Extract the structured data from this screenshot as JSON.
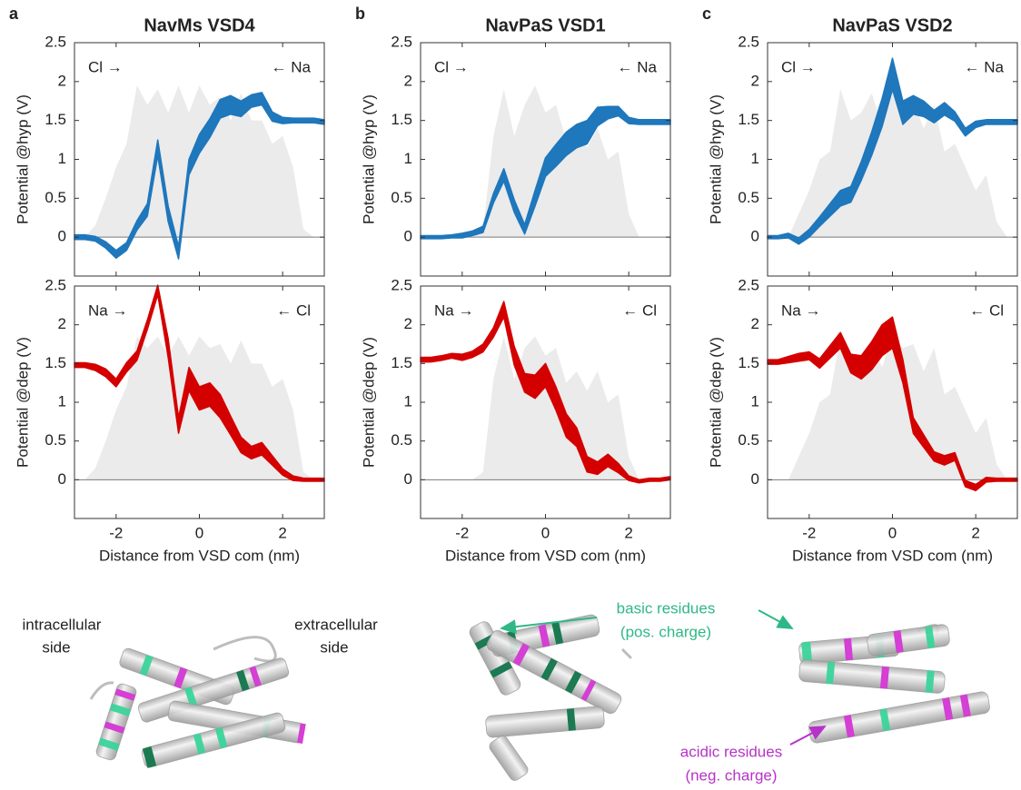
{
  "chart_data": [
    {
      "type": "band",
      "panel_label": "a",
      "title": "NavMs VSD4",
      "ylabel": "Potential @hyp (V)",
      "annotations": [
        "Cl →",
        "← Na"
      ],
      "x": [
        -3,
        -2.75,
        -2.5,
        -2.25,
        -2,
        -1.75,
        -1.5,
        -1.25,
        -1,
        -0.75,
        -0.5,
        -0.25,
        0,
        0.25,
        0.5,
        0.75,
        1,
        1.25,
        1.5,
        1.75,
        2,
        2.25,
        2.5,
        2.75,
        3
      ],
      "xlim": [
        -3,
        3
      ],
      "xticks": [
        -2,
        0,
        2
      ],
      "show_xtick_labels": false,
      "ylim": [
        -0.5,
        2.5
      ],
      "yticks": [
        0,
        0.5,
        1,
        1.5,
        2,
        2.5
      ],
      "zero_line": true,
      "series": [
        {
          "color": "#ebebeb",
          "values": [
            0,
            0,
            0.15,
            0.5,
            0.9,
            1.2,
            1.95,
            1.7,
            1.9,
            1.6,
            1.95,
            1.6,
            1.95,
            1.7,
            1.8,
            1.5,
            1.85,
            1.5,
            1.5,
            1.2,
            1.3,
            0.9,
            0.1,
            0,
            0
          ]
        },
        {
          "color": "#1f77bc",
          "values": [
            0,
            0,
            -0.02,
            -0.1,
            -0.22,
            -0.12,
            0.15,
            0.35,
            1.15,
            0.3,
            -0.2,
            0.9,
            1.2,
            1.4,
            1.65,
            1.7,
            1.65,
            1.75,
            1.78,
            1.55,
            1.5,
            1.5,
            1.5,
            1.5,
            1.48
          ],
          "errors": [
            0.03,
            0.03,
            0.03,
            0.04,
            0.05,
            0.05,
            0.06,
            0.08,
            0.1,
            0.1,
            0.08,
            0.1,
            0.12,
            0.12,
            0.12,
            0.12,
            0.1,
            0.08,
            0.08,
            0.06,
            0.04,
            0.03,
            0.03,
            0.03,
            0.03
          ]
        }
      ]
    },
    {
      "type": "band",
      "panel_label": "b",
      "title": "NavPaS VSD1",
      "ylabel": "Potential @hyp (V)",
      "annotations": [
        "Cl →",
        "← Na"
      ],
      "x": [
        -3,
        -2.75,
        -2.5,
        -2.25,
        -2,
        -1.75,
        -1.5,
        -1.25,
        -1,
        -0.75,
        -0.5,
        -0.25,
        0,
        0.25,
        0.5,
        0.75,
        1,
        1.25,
        1.5,
        1.75,
        2,
        2.25,
        2.5,
        2.75,
        3
      ],
      "xlim": [
        -3,
        3
      ],
      "xticks": [
        -2,
        0,
        2
      ],
      "show_xtick_labels": false,
      "ylim": [
        -0.5,
        2.5
      ],
      "yticks": [
        0,
        0.5,
        1,
        1.5,
        2,
        2.5
      ],
      "zero_line": true,
      "series": [
        {
          "color": "#ebebeb",
          "values": [
            0,
            0,
            0,
            0,
            0,
            0,
            0.1,
            1.3,
            1.9,
            1.3,
            1.7,
            1.95,
            1.6,
            1.7,
            1.25,
            1.4,
            1.15,
            1.4,
            1.0,
            1.1,
            0.3,
            0,
            0,
            0,
            0
          ]
        },
        {
          "color": "#1f77bc",
          "values": [
            0,
            0,
            0,
            0.01,
            0.02,
            0.05,
            0.1,
            0.5,
            0.8,
            0.4,
            0.1,
            0.5,
            0.9,
            1.05,
            1.2,
            1.3,
            1.35,
            1.55,
            1.6,
            1.62,
            1.5,
            1.48,
            1.48,
            1.48,
            1.48
          ],
          "errors": [
            0.02,
            0.02,
            0.02,
            0.02,
            0.03,
            0.03,
            0.04,
            0.06,
            0.08,
            0.08,
            0.06,
            0.1,
            0.12,
            0.14,
            0.15,
            0.15,
            0.15,
            0.12,
            0.08,
            0.06,
            0.04,
            0.03,
            0.03,
            0.03,
            0.03
          ]
        }
      ]
    },
    {
      "type": "band",
      "panel_label": "c",
      "title": "NavPaS VSD2",
      "ylabel": "Potential @hyp (V)",
      "annotations": [
        "Cl →",
        "← Na"
      ],
      "x": [
        -3,
        -2.75,
        -2.5,
        -2.25,
        -2,
        -1.75,
        -1.5,
        -1.25,
        -1,
        -0.75,
        -0.5,
        -0.25,
        0,
        0.25,
        0.5,
        0.75,
        1,
        1.25,
        1.5,
        1.75,
        2,
        2.25,
        2.5,
        2.75,
        3
      ],
      "xlim": [
        -3,
        3
      ],
      "xticks": [
        -2,
        0,
        2
      ],
      "show_xtick_labels": false,
      "ylim": [
        -0.5,
        2.5
      ],
      "yticks": [
        0,
        0.5,
        1,
        1.5,
        2,
        2.5
      ],
      "zero_line": true,
      "series": [
        {
          "color": "#ebebeb",
          "values": [
            0,
            0,
            0,
            0.3,
            0.6,
            1.0,
            1.1,
            1.9,
            1.5,
            1.6,
            1.85,
            1.45,
            1.9,
            1.7,
            1.75,
            1.4,
            1.7,
            1.1,
            1.2,
            0.9,
            0.6,
            0.8,
            0.2,
            0,
            0
          ]
        },
        {
          "color": "#1f77bc",
          "values": [
            0,
            0,
            0.02,
            -0.05,
            0.05,
            0.2,
            0.35,
            0.5,
            0.55,
            0.85,
            1.2,
            1.6,
            2.1,
            1.6,
            1.7,
            1.65,
            1.55,
            1.65,
            1.55,
            1.35,
            1.45,
            1.48,
            1.48,
            1.48,
            1.48
          ],
          "errors": [
            0.02,
            0.02,
            0.03,
            0.04,
            0.05,
            0.06,
            0.08,
            0.1,
            0.1,
            0.12,
            0.15,
            0.18,
            0.2,
            0.15,
            0.12,
            0.1,
            0.08,
            0.08,
            0.06,
            0.05,
            0.04,
            0.03,
            0.03,
            0.03,
            0.03
          ]
        }
      ]
    },
    {
      "type": "band",
      "ylabel": "Potential @dep (V)",
      "xlabel": "Distance from VSD com (nm)",
      "annotations": [
        "Na →",
        "← Cl"
      ],
      "x": [
        -3,
        -2.75,
        -2.5,
        -2.25,
        -2,
        -1.75,
        -1.5,
        -1.25,
        -1,
        -0.75,
        -0.5,
        -0.25,
        0,
        0.25,
        0.5,
        0.75,
        1,
        1.25,
        1.5,
        1.75,
        2,
        2.25,
        2.5,
        2.75,
        3
      ],
      "xlim": [
        -3,
        3
      ],
      "xticks": [
        -2,
        0,
        2
      ],
      "show_xtick_labels": true,
      "ylim": [
        -0.5,
        2.5
      ],
      "yticks": [
        0,
        0.5,
        1,
        1.5,
        2,
        2.5
      ],
      "zero_line": true,
      "series": [
        {
          "color": "#ebebeb",
          "values": [
            0,
            0,
            0.15,
            0.5,
            0.9,
            1.2,
            1.85,
            1.7,
            1.85,
            1.6,
            1.85,
            1.6,
            1.85,
            1.7,
            1.75,
            1.5,
            1.8,
            1.5,
            1.5,
            1.2,
            1.3,
            0.9,
            0.1,
            0,
            0
          ]
        },
        {
          "color": "#d40000",
          "values": [
            1.48,
            1.48,
            1.45,
            1.38,
            1.25,
            1.45,
            1.6,
            2.0,
            2.45,
            1.7,
            0.7,
            1.3,
            1.05,
            1.1,
            0.95,
            0.7,
            0.45,
            0.35,
            0.4,
            0.25,
            0.1,
            0.02,
            0,
            0,
            0
          ],
          "errors": [
            0.03,
            0.03,
            0.04,
            0.05,
            0.05,
            0.06,
            0.06,
            0.06,
            0.06,
            0.12,
            0.1,
            0.15,
            0.15,
            0.15,
            0.15,
            0.12,
            0.1,
            0.08,
            0.08,
            0.06,
            0.04,
            0.03,
            0.02,
            0.02,
            0.02
          ]
        }
      ]
    },
    {
      "type": "band",
      "ylabel": "Potential @dep (V)",
      "xlabel": "Distance from VSD com (nm)",
      "annotations": [
        "Na →",
        "← Cl"
      ],
      "x": [
        -3,
        -2.75,
        -2.5,
        -2.25,
        -2,
        -1.75,
        -1.5,
        -1.25,
        -1,
        -0.75,
        -0.5,
        -0.25,
        0,
        0.25,
        0.5,
        0.75,
        1,
        1.25,
        1.5,
        1.75,
        2,
        2.25,
        2.5,
        2.75,
        3
      ],
      "xlim": [
        -3,
        3
      ],
      "xticks": [
        -2,
        0,
        2
      ],
      "show_xtick_labels": true,
      "ylim": [
        -0.5,
        2.5
      ],
      "yticks": [
        0,
        0.5,
        1,
        1.5,
        2,
        2.5
      ],
      "zero_line": true,
      "series": [
        {
          "color": "#ebebeb",
          "values": [
            0,
            0,
            0,
            0,
            0,
            0,
            0.1,
            1.3,
            1.85,
            1.3,
            1.7,
            1.85,
            1.6,
            1.7,
            1.25,
            1.4,
            1.15,
            1.4,
            1.0,
            1.1,
            0.3,
            0,
            0,
            0,
            0
          ]
        },
        {
          "color": "#d40000",
          "values": [
            1.55,
            1.55,
            1.57,
            1.6,
            1.58,
            1.62,
            1.7,
            1.9,
            2.2,
            1.6,
            1.25,
            1.2,
            1.35,
            1.05,
            0.7,
            0.55,
            0.2,
            0.15,
            0.25,
            0.15,
            0.02,
            -0.02,
            0,
            0,
            0.02
          ],
          "errors": [
            0.03,
            0.03,
            0.03,
            0.03,
            0.04,
            0.04,
            0.05,
            0.06,
            0.1,
            0.12,
            0.12,
            0.15,
            0.15,
            0.15,
            0.15,
            0.12,
            0.1,
            0.08,
            0.08,
            0.06,
            0.03,
            0.02,
            0.02,
            0.02,
            0.02
          ]
        }
      ]
    },
    {
      "type": "band",
      "ylabel": "Potential @dep (V)",
      "xlabel": "Distance from VSD com (nm)",
      "annotations": [
        "Na →",
        "← Cl"
      ],
      "x": [
        -3,
        -2.75,
        -2.5,
        -2.25,
        -2,
        -1.75,
        -1.5,
        -1.25,
        -1,
        -0.75,
        -0.5,
        -0.25,
        0,
        0.25,
        0.5,
        0.75,
        1,
        1.25,
        1.5,
        1.75,
        2,
        2.25,
        2.5,
        2.75,
        3
      ],
      "xlim": [
        -3,
        3
      ],
      "xticks": [
        -2,
        0,
        2
      ],
      "show_xtick_labels": true,
      "ylim": [
        -0.5,
        2.5
      ],
      "yticks": [
        0,
        0.5,
        1,
        1.5,
        2,
        2.5
      ],
      "zero_line": true,
      "series": [
        {
          "color": "#ebebeb",
          "values": [
            0,
            0,
            0,
            0.3,
            0.6,
            1.0,
            1.1,
            1.85,
            1.5,
            1.6,
            1.8,
            1.45,
            1.85,
            1.7,
            1.75,
            1.4,
            1.7,
            1.1,
            1.2,
            0.9,
            0.6,
            0.8,
            0.2,
            0,
            0
          ]
        },
        {
          "color": "#d40000",
          "values": [
            1.52,
            1.52,
            1.55,
            1.58,
            1.6,
            1.5,
            1.65,
            1.8,
            1.5,
            1.45,
            1.6,
            1.8,
            1.9,
            1.4,
            0.7,
            0.5,
            0.3,
            0.25,
            0.3,
            -0.05,
            -0.1,
            0,
            0,
            0,
            0
          ],
          "errors": [
            0.03,
            0.03,
            0.04,
            0.05,
            0.05,
            0.06,
            0.08,
            0.1,
            0.12,
            0.15,
            0.18,
            0.2,
            0.2,
            0.15,
            0.1,
            0.08,
            0.06,
            0.06,
            0.05,
            0.04,
            0.04,
            0.03,
            0.02,
            0.02,
            0.02
          ]
        }
      ]
    }
  ],
  "structure_labels": {
    "intracellular": [
      "intracellular",
      "side"
    ],
    "extracellular": [
      "extracellular",
      "side"
    ],
    "basic": [
      "basic residues",
      "(pos. charge)"
    ],
    "acidic": [
      "acidic residues",
      "(neg. charge)"
    ]
  }
}
